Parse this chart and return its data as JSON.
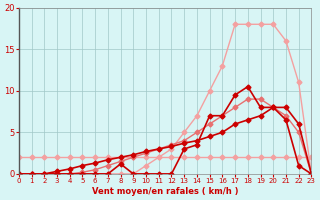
{
  "x": [
    0,
    1,
    2,
    3,
    4,
    5,
    6,
    7,
    8,
    9,
    10,
    11,
    12,
    13,
    14,
    15,
    16,
    17,
    18,
    19,
    20,
    21,
    22,
    23
  ],
  "series": [
    {
      "name": "light_pink_flat",
      "color": "#F4A0A0",
      "linewidth": 1.0,
      "marker": "D",
      "markersize": 2.5,
      "y": [
        2,
        2,
        2,
        2,
        2,
        2,
        2,
        2,
        2,
        2,
        2,
        2,
        2,
        2,
        2,
        2,
        2,
        2,
        2,
        2,
        2,
        2,
        2,
        2
      ]
    },
    {
      "name": "light_pink_rising",
      "color": "#F4A0A0",
      "linewidth": 1.0,
      "marker": "D",
      "markersize": 2.5,
      "y": [
        0,
        0,
        0,
        0,
        0,
        0,
        0,
        0,
        0,
        0,
        1,
        2,
        3,
        5,
        7,
        10,
        13,
        18,
        18,
        18,
        18,
        16,
        11,
        0
      ]
    },
    {
      "name": "pink_linear",
      "color": "#E87070",
      "linewidth": 1.0,
      "marker": "D",
      "markersize": 2.5,
      "y": [
        0,
        0,
        0,
        0,
        0,
        0.2,
        0.5,
        1,
        1.5,
        2,
        2.5,
        3,
        3.5,
        4,
        5,
        6,
        7,
        8,
        9,
        9,
        8,
        7,
        5,
        0
      ]
    },
    {
      "name": "dark_red_spike",
      "color": "#CC0000",
      "linewidth": 1.2,
      "marker": "D",
      "markersize": 2.5,
      "y": [
        0,
        0,
        0,
        0,
        0,
        0,
        0,
        0,
        1.2,
        0,
        0,
        0,
        0,
        3,
        3.5,
        7,
        7,
        9.5,
        10.5,
        8,
        8,
        6.5,
        1,
        0
      ]
    },
    {
      "name": "dark_red_linear",
      "color": "#CC0000",
      "linewidth": 1.2,
      "marker": "D",
      "markersize": 2.5,
      "y": [
        0,
        0,
        0,
        0.3,
        0.6,
        1,
        1.3,
        1.7,
        2,
        2.3,
        2.7,
        3,
        3.3,
        3.7,
        4,
        4.5,
        5,
        6,
        6.5,
        7,
        8,
        8,
        6,
        0
      ]
    }
  ],
  "xlabel": "Vent moyen/en rafales ( km/h )",
  "ylabel": "",
  "xlim": [
    0,
    23
  ],
  "ylim": [
    0,
    20
  ],
  "yticks": [
    0,
    5,
    10,
    15,
    20
  ],
  "xticks": [
    0,
    1,
    2,
    3,
    4,
    5,
    6,
    7,
    8,
    9,
    10,
    11,
    12,
    13,
    14,
    15,
    16,
    17,
    18,
    19,
    20,
    21,
    22,
    23
  ],
  "bg_color": "#D8F5F5",
  "grid_color": "#A0C8C8",
  "title_color": "#CC0000",
  "tick_color": "#CC0000",
  "xlabel_color": "#CC0000",
  "ylabel_color": "#CC0000"
}
